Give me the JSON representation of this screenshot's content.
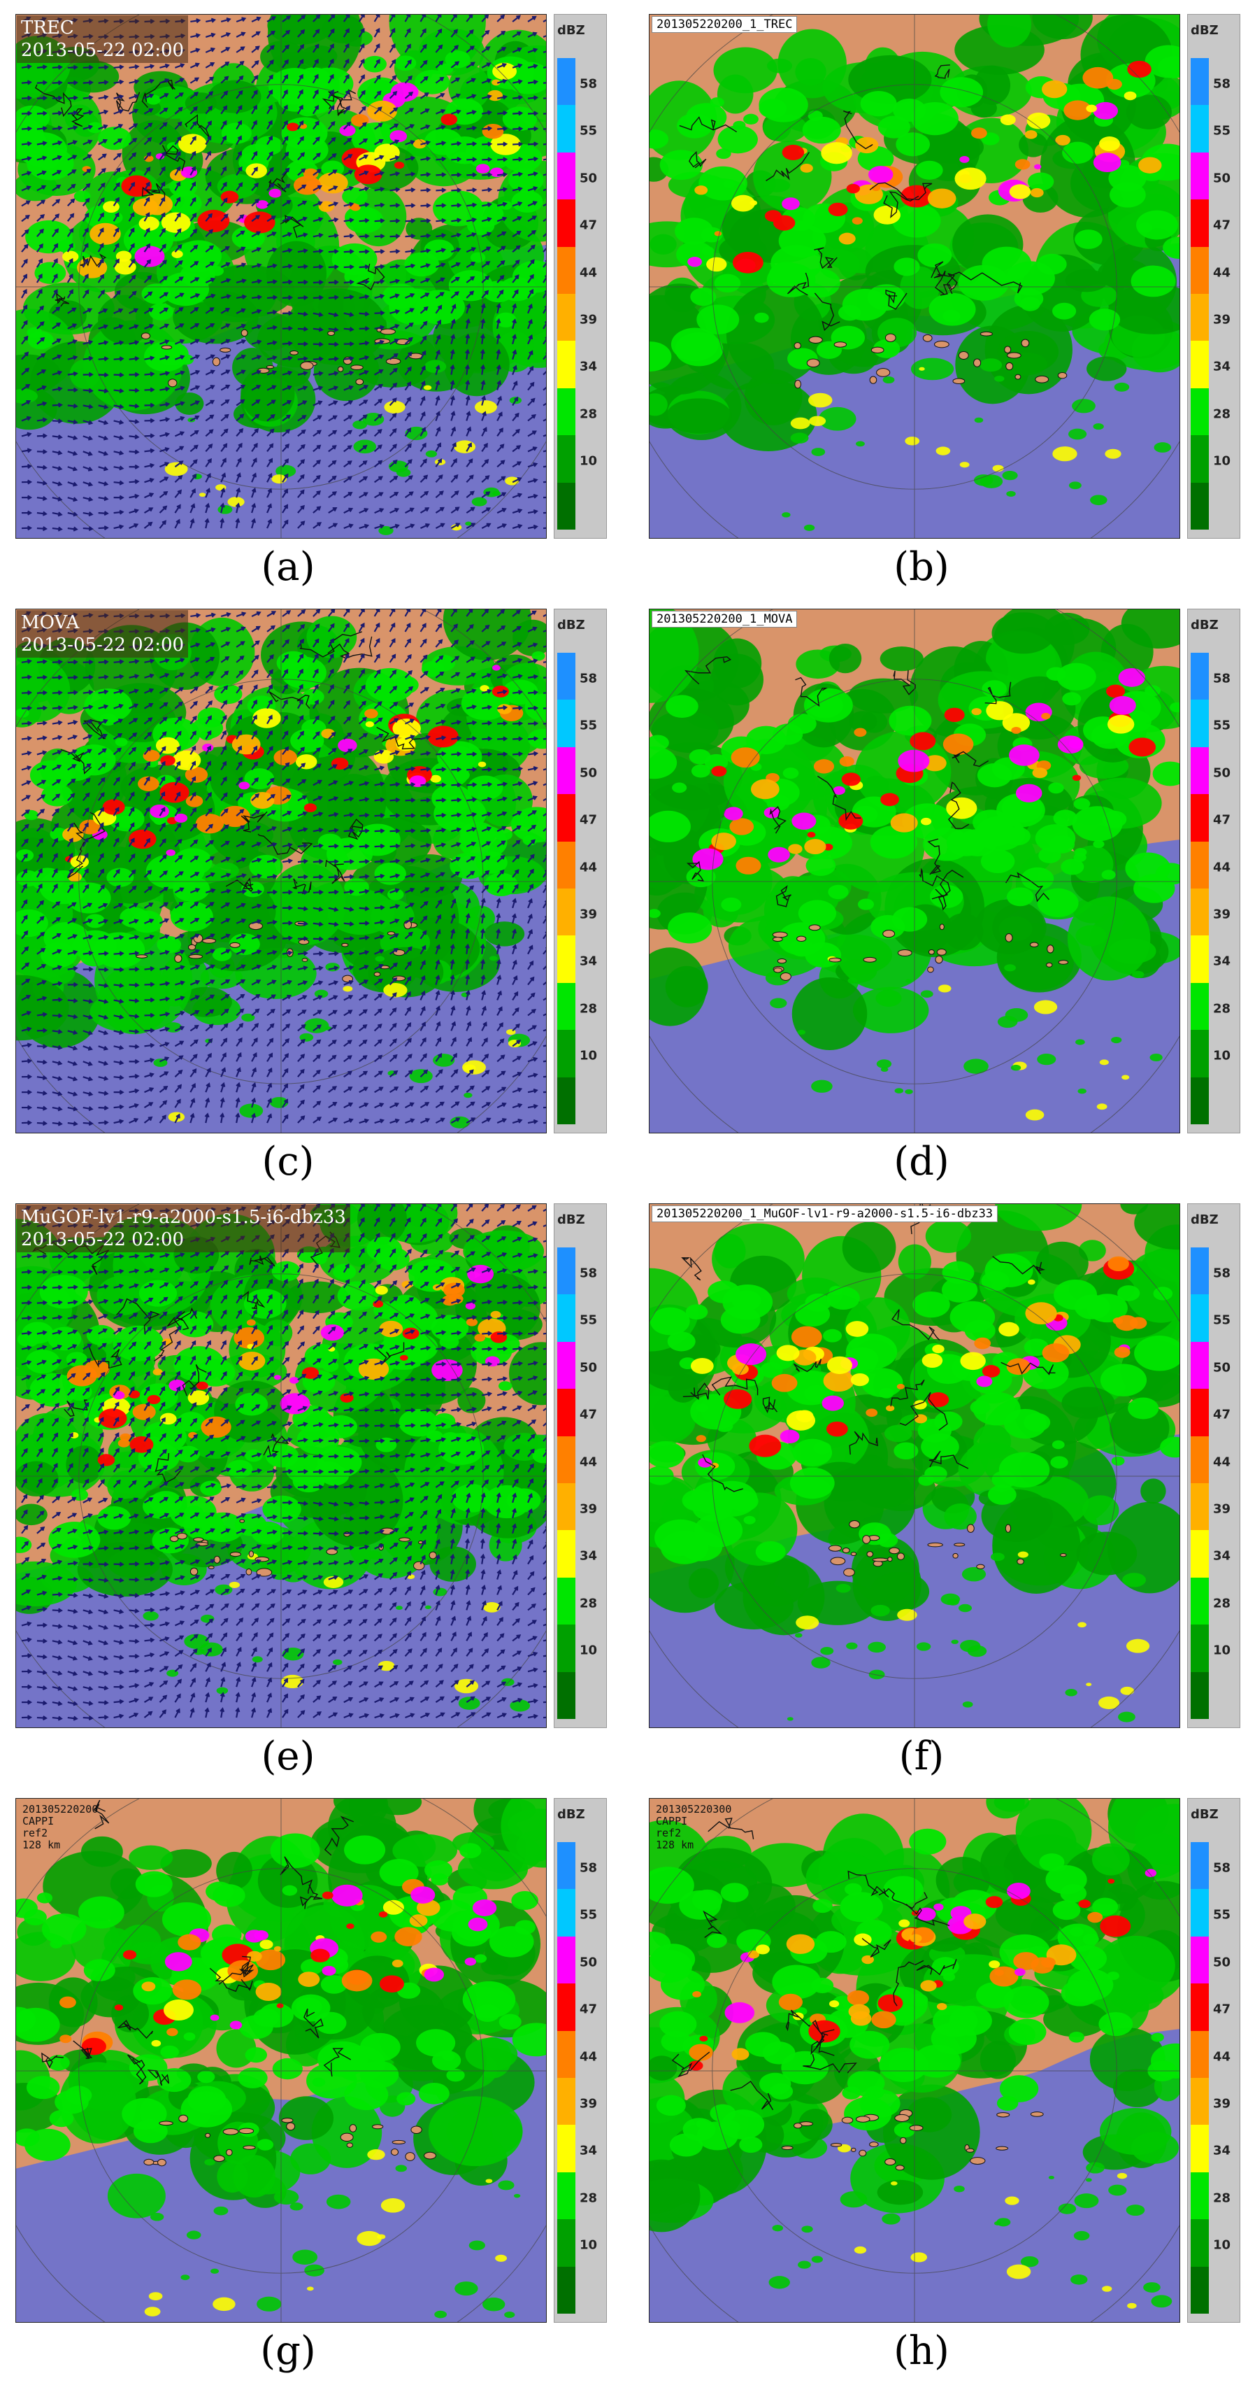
{
  "colors": {
    "land": "#d9946a",
    "sea": "#7474c8",
    "coast": "#111111",
    "vector": "#1a1a6e",
    "radar_ring": "#444444"
  },
  "legend": {
    "unit": "dBZ",
    "ticks": [
      "58",
      "55",
      "50",
      "47",
      "44",
      "39",
      "34",
      "28",
      "10"
    ],
    "colors": [
      "#1e90ff",
      "#00c8ff",
      "#ff00ff",
      "#ff0000",
      "#ff8000",
      "#ffb000",
      "#ffff00",
      "#00e600",
      "#00a000",
      "#007000"
    ]
  },
  "panels": [
    {
      "id": "a",
      "caption": "(a)",
      "title": "TREC",
      "time": "2013-05-22 02:00",
      "label": "",
      "cappi": [],
      "vectors": true
    },
    {
      "id": "b",
      "caption": "(b)",
      "title": "",
      "time": "",
      "label": "201305220200_1_TREC",
      "cappi": [],
      "vectors": false
    },
    {
      "id": "c",
      "caption": "(c)",
      "title": "MOVA",
      "time": "2013-05-22 02:00",
      "label": "",
      "cappi": [],
      "vectors": true
    },
    {
      "id": "d",
      "caption": "(d)",
      "title": "",
      "time": "",
      "label": "201305220200_1_MOVA",
      "cappi": [],
      "vectors": false
    },
    {
      "id": "e",
      "caption": "(e)",
      "title": "MuGOF-lv1-r9-a2000-s1.5-i6-dbz33",
      "time": "2013-05-22 02:00",
      "label": "",
      "cappi": [],
      "vectors": true
    },
    {
      "id": "f",
      "caption": "(f)",
      "title": "",
      "time": "",
      "label": "201305220200_1_MuGOF-lv1-r9-a2000-s1.5-i6-dbz33",
      "cappi": [],
      "vectors": false
    },
    {
      "id": "g",
      "caption": "(g)",
      "title": "",
      "time": "",
      "label": "",
      "cappi": [
        "201305220200",
        "CAPPI",
        "ref2",
        "128 km"
      ],
      "vectors": false
    },
    {
      "id": "h",
      "caption": "(h)",
      "title": "",
      "time": "",
      "label": "",
      "cappi": [
        "201305220300",
        "CAPPI",
        "ref2",
        "128 km"
      ],
      "vectors": false
    }
  ]
}
